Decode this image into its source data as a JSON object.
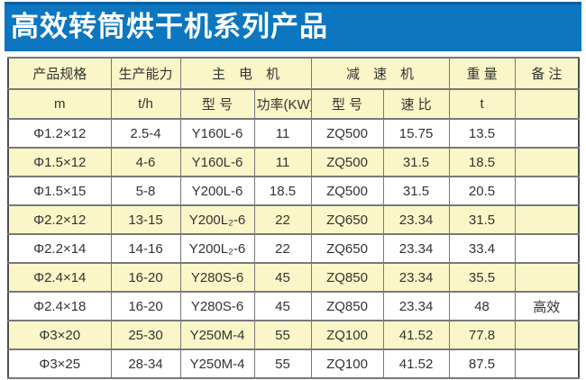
{
  "title": "高效转筒烘干机系列产品",
  "colors": {
    "title_bg": "#0d76c0",
    "title_top_edge": "#0a5f9f",
    "header_bg": "#fbf6c7",
    "alt_row_bg": "#fbf6c7",
    "border": "#77787a",
    "text": "#333333"
  },
  "table": {
    "header_row1": [
      "产品规格",
      "生产能力",
      "主　电　机",
      "减　速　机",
      "重 量",
      "备 注"
    ],
    "header_row2": [
      "m",
      "t/h",
      "型 号",
      "功率(KW)",
      "型 号",
      "速 比",
      "t",
      ""
    ],
    "rows": [
      [
        "Φ1.2×12",
        "2.5-4",
        "Y160L-6",
        "11",
        "ZQ500",
        "15.75",
        "13.5",
        ""
      ],
      [
        "Φ1.5×12",
        "4-6",
        "Y160L-6",
        "11",
        "ZQ500",
        "31.5",
        "18.5",
        ""
      ],
      [
        "Φ1.5×15",
        "5-8",
        "Y200L-6",
        "18.5",
        "ZQ500",
        "31.5",
        "20.5",
        ""
      ],
      [
        "Φ2.2×12",
        "13-15",
        "Y200L₂-6",
        "22",
        "ZQ650",
        "23.34",
        "31.5",
        ""
      ],
      [
        "Φ2.2×14",
        "14-16",
        "Y200L₂-6",
        "22",
        "ZQ650",
        "23.34",
        "33.4",
        ""
      ],
      [
        "Φ2.4×14",
        "16-20",
        "Y280S-6",
        "45",
        "ZQ850",
        "23.34",
        "35.5",
        ""
      ],
      [
        "Φ2.4×18",
        "16-20",
        "Y280S-6",
        "45",
        "ZQ850",
        "23.34",
        "48",
        "高效"
      ],
      [
        "Φ3×20",
        "25-30",
        "Y250M-4",
        "55",
        "ZQ100",
        "41.52",
        "77.8",
        ""
      ],
      [
        "Φ3×25",
        "28-34",
        "Y250M-4",
        "55",
        "ZQ100",
        "41.52",
        "87.5",
        ""
      ]
    ]
  }
}
